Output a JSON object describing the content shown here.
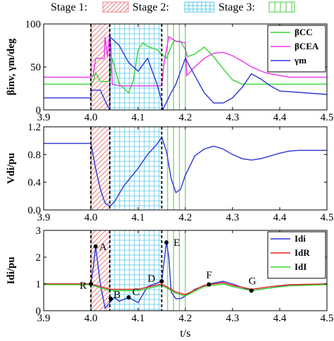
{
  "stages": [
    {
      "label": "Stage 1:",
      "pattern": "hatch"
    },
    {
      "label": "Stage 2:",
      "pattern": "grid"
    },
    {
      "label": "Stage 3:",
      "pattern": "vlines"
    }
  ],
  "stage_spans": [
    [
      4.0,
      4.04
    ],
    [
      4.04,
      4.15
    ],
    [
      4.15,
      4.2
    ]
  ],
  "dashed_markers_x": [
    4.0,
    4.04,
    4.15
  ],
  "xlabel": "t/s",
  "colors": {
    "blue": "#2b35d6",
    "green": "#33d633",
    "magenta": "#ee33ee",
    "red": "#e81e1e",
    "hatch": "#e88080",
    "grid": "#55c8e8",
    "vlines": "#44cc44"
  },
  "chart_data": [
    {
      "type": "line",
      "ylabel": "βinv, γm/deg",
      "xlim": [
        3.9,
        4.5
      ],
      "ylim": [
        0,
        100
      ],
      "xticks": [
        "3.9",
        "4.0",
        "4.1",
        "4.2",
        "4.3",
        "4.4",
        "4.5"
      ],
      "yticks": [
        "0",
        "50",
        "100"
      ],
      "legend_position": "top-right",
      "series": [
        {
          "name": "βCC",
          "sub": "CC",
          "color": "#33d633",
          "x": [
            3.9,
            4.0,
            4.005,
            4.01,
            4.02,
            4.03,
            4.04,
            4.045,
            4.06,
            4.07,
            4.08,
            4.09,
            4.1,
            4.11,
            4.12,
            4.13,
            4.14,
            4.15,
            4.16,
            4.175,
            4.19,
            4.2,
            4.205,
            4.22,
            4.24,
            4.26,
            4.28,
            4.3,
            4.32,
            4.5
          ],
          "y": [
            30,
            30,
            33,
            43,
            33,
            33,
            33,
            60,
            30,
            25,
            20,
            35,
            70,
            78,
            74,
            72,
            70,
            65,
            60,
            80,
            80,
            70,
            62,
            65,
            73,
            62,
            48,
            35,
            30,
            30
          ]
        },
        {
          "name": "βCEA",
          "sub": "CEA",
          "color": "#ee33ee",
          "x": [
            3.9,
            4.0,
            4.005,
            4.01,
            4.02,
            4.028,
            4.03,
            4.035,
            4.04,
            4.043,
            4.045,
            4.06,
            4.1,
            4.12,
            4.15,
            4.155,
            4.165,
            4.18,
            4.2,
            4.203,
            4.22,
            4.24,
            4.26,
            4.28,
            4.3,
            4.32,
            4.34,
            4.37,
            4.4,
            4.42,
            4.5
          ],
          "y": [
            38,
            38,
            40,
            60,
            60,
            60,
            85,
            62,
            90,
            70,
            30,
            28,
            28,
            28,
            28,
            55,
            85,
            80,
            78,
            40,
            50,
            60,
            66,
            67,
            63,
            57,
            50,
            43,
            40,
            38,
            38
          ]
        },
        {
          "name": "γm",
          "sub": "m",
          "color": "#2b35d6",
          "x": [
            3.9,
            4.0,
            4.0005,
            4.02,
            4.0305,
            4.04,
            4.0405,
            4.06,
            4.08,
            4.1,
            4.12,
            4.14,
            4.15,
            4.152,
            4.17,
            4.18,
            4.2,
            4.22,
            4.24,
            4.26,
            4.28,
            4.3,
            4.32,
            4.34,
            4.36,
            4.38,
            4.4,
            4.5
          ],
          "y": [
            14,
            14,
            23,
            23,
            10,
            0,
            85,
            75,
            55,
            45,
            60,
            30,
            10,
            0,
            20,
            30,
            60,
            40,
            20,
            8,
            8,
            14,
            26,
            42,
            36,
            28,
            22,
            18
          ]
        }
      ]
    },
    {
      "type": "line",
      "ylabel": "Vdi/pu",
      "xlim": [
        3.9,
        4.5
      ],
      "ylim": [
        0,
        1.2
      ],
      "xticks": [
        "3.9",
        "4.0",
        "4.1",
        "4.2",
        "4.3",
        "4.4",
        "4.5"
      ],
      "yticks": [
        "0.0",
        "0.4",
        "0.8",
        "1.2"
      ],
      "series": [
        {
          "name": "Vdi",
          "color": "#2b35d6",
          "x": [
            3.9,
            4.0,
            4.01,
            4.02,
            4.03,
            4.04,
            4.05,
            4.07,
            4.1,
            4.12,
            4.14,
            4.15,
            4.16,
            4.17,
            4.18,
            4.19,
            4.2,
            4.22,
            4.24,
            4.26,
            4.28,
            4.3,
            4.32,
            4.34,
            4.36,
            4.38,
            4.4,
            4.42,
            4.44,
            4.46,
            4.5
          ],
          "y": [
            0.96,
            0.96,
            0.6,
            0.3,
            0.1,
            0.05,
            0.12,
            0.35,
            0.6,
            0.8,
            0.95,
            1.05,
            0.85,
            0.45,
            0.25,
            0.3,
            0.5,
            0.78,
            0.88,
            0.92,
            0.88,
            0.8,
            0.74,
            0.72,
            0.74,
            0.78,
            0.82,
            0.85,
            0.86,
            0.86,
            0.86
          ]
        }
      ]
    },
    {
      "type": "line",
      "ylabel": "Idi/pu",
      "xlim": [
        3.9,
        4.5
      ],
      "ylim": [
        0,
        3
      ],
      "xticks": [
        "3.9",
        "4.0",
        "4.1",
        "4.2",
        "4.3",
        "4.4",
        "4.5"
      ],
      "yticks": [
        "0",
        "1",
        "2",
        "3"
      ],
      "legend_position": "top-right",
      "series": [
        {
          "name": "Idi",
          "sub": "di",
          "color": "#2b35d6",
          "x": [
            3.9,
            4.0,
            4.005,
            4.01,
            4.02,
            4.03,
            4.04,
            4.05,
            4.06,
            4.08,
            4.1,
            4.12,
            4.15,
            4.16,
            4.165,
            4.17,
            4.18,
            4.19,
            4.2,
            4.22,
            4.25,
            4.28,
            4.3,
            4.34,
            4.38,
            4.42,
            4.5
          ],
          "y": [
            1.0,
            1.0,
            1.6,
            2.4,
            1.0,
            0.1,
            0.3,
            0.5,
            0.35,
            0.5,
            0.3,
            0.9,
            1.1,
            2.55,
            2.0,
            0.7,
            0.45,
            0.45,
            0.55,
            0.8,
            1.0,
            1.1,
            1.0,
            0.75,
            0.85,
            0.95,
            1.0
          ]
        },
        {
          "name": "IdR",
          "sub": "dR",
          "color": "#e81e1e",
          "x": [
            3.9,
            4.0,
            4.02,
            4.04,
            4.1,
            4.15,
            4.18,
            4.2,
            4.24,
            4.28,
            4.3,
            4.34,
            4.38,
            4.42,
            4.5
          ],
          "y": [
            1.0,
            1.0,
            0.9,
            0.8,
            0.8,
            1.0,
            0.7,
            0.6,
            0.95,
            1.05,
            0.95,
            0.8,
            0.9,
            0.97,
            1.0
          ]
        },
        {
          "name": "IdI",
          "sub": "dI",
          "color": "#33d633",
          "x": [
            3.9,
            4.0,
            4.02,
            4.04,
            4.1,
            4.15,
            4.18,
            4.2,
            4.24,
            4.28,
            4.3,
            4.34,
            4.38,
            4.42,
            4.5
          ],
          "y": [
            0.97,
            0.97,
            0.85,
            0.75,
            0.75,
            0.95,
            0.65,
            0.55,
            0.9,
            1.0,
            0.9,
            0.75,
            0.85,
            0.93,
            0.97
          ]
        }
      ],
      "annotations": [
        {
          "label": "R",
          "x": 4.0,
          "y": 1.0,
          "dx": -16,
          "dy": 2
        },
        {
          "label": "A",
          "x": 4.01,
          "y": 2.4,
          "dx": 5,
          "dy": 0
        },
        {
          "label": "B",
          "x": 4.042,
          "y": 0.45,
          "dx": 4,
          "dy": -6
        },
        {
          "label": "C",
          "x": 4.08,
          "y": 0.5,
          "dx": 5,
          "dy": -8
        },
        {
          "label": "D",
          "x": 4.15,
          "y": 1.1,
          "dx": -20,
          "dy": -4
        },
        {
          "label": "E",
          "x": 4.16,
          "y": 2.55,
          "dx": 10,
          "dy": 0
        },
        {
          "label": "F",
          "x": 4.25,
          "y": 0.98,
          "dx": -4,
          "dy": -14
        },
        {
          "label": "G",
          "x": 4.34,
          "y": 0.75,
          "dx": -4,
          "dy": -14
        }
      ]
    }
  ]
}
